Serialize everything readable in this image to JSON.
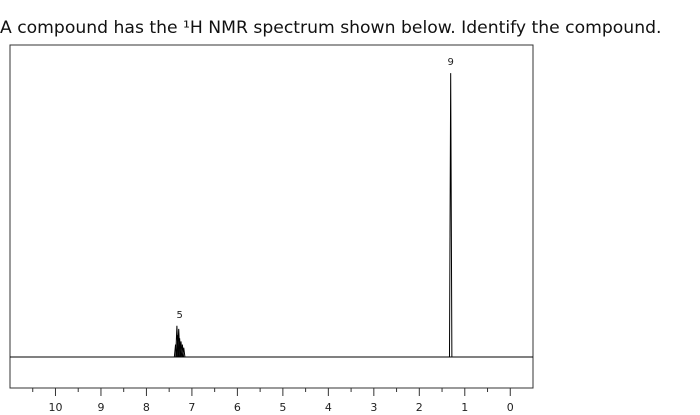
{
  "question": "A compound has the ¹H NMR spectrum shown below. Identify the compound.",
  "chart_data": {
    "type": "spectrum",
    "x": [
      7.36,
      7.33,
      7.31,
      7.29,
      7.27,
      7.24,
      7.21,
      7.18,
      1.31
    ],
    "values": [
      4,
      10,
      7,
      9,
      6,
      5,
      4,
      3,
      91
    ],
    "integrations": [
      {
        "value": 9,
        "x": 1.31
      },
      {
        "value": 5,
        "x": 7.27
      }
    ],
    "xlim": [
      11,
      -0.5
    ],
    "ylim": [
      0,
      100
    ],
    "xticks": [
      10,
      9,
      8,
      7,
      6,
      5,
      4,
      3,
      2,
      1,
      0
    ],
    "xminorticks": [
      10.5,
      9.5,
      8.5,
      7.5,
      6.5,
      5.5,
      4.5,
      3.5,
      2.5,
      1.5,
      0.5
    ],
    "color": "#000000"
  }
}
